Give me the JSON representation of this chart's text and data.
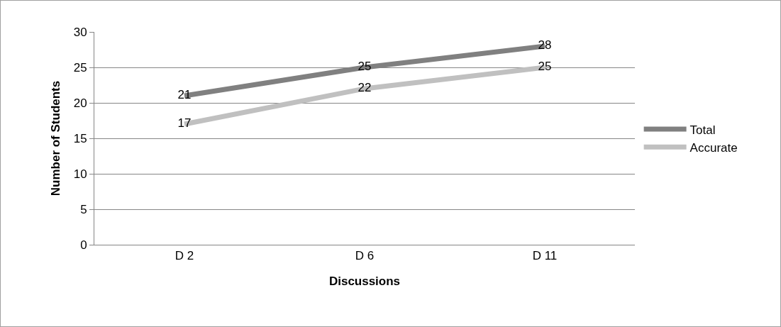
{
  "chart_data": {
    "type": "line",
    "xlabel": "Discussions",
    "ylabel": "Number of Students",
    "categories": [
      "D 2",
      "D 6",
      "D 11"
    ],
    "series": [
      {
        "name": "Total",
        "color": "#808080",
        "values": [
          21,
          25,
          28
        ]
      },
      {
        "name": "Accurate",
        "color": "#c0c0c0",
        "values": [
          17,
          22,
          25
        ]
      }
    ],
    "ylim": [
      0,
      30
    ],
    "yticks": [
      0,
      5,
      10,
      15,
      20,
      25,
      30
    ],
    "grid": "y",
    "legend": "right",
    "marker": "none",
    "line_style": "solid",
    "data_labels": true
  }
}
